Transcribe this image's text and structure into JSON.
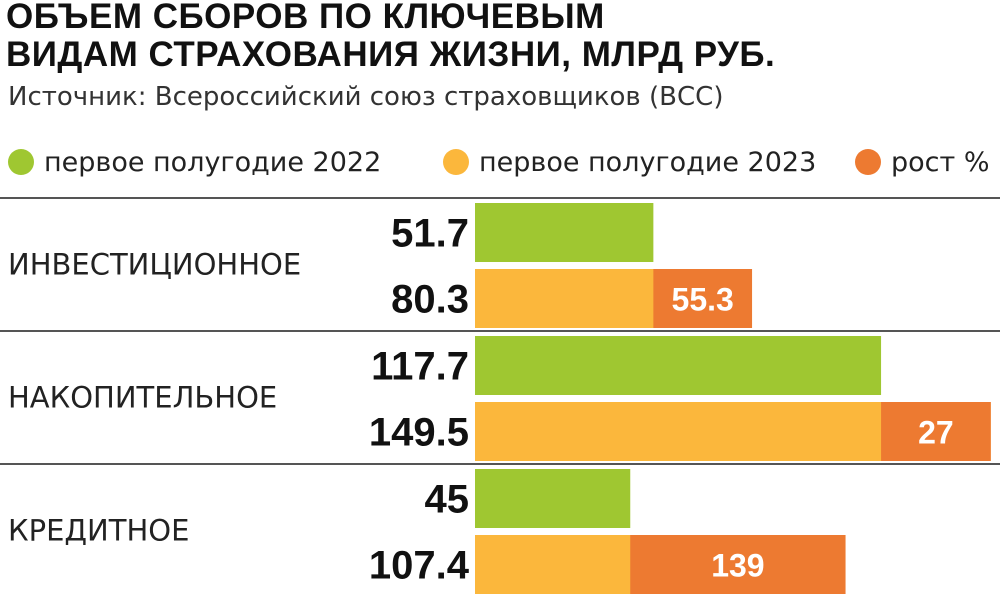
{
  "title_line1": "ОБЪЕМ СБОРОВ ПО КЛЮЧЕВЫМ",
  "title_line2": "ВИДАМ СТРАХОВАНИЯ ЖИЗНИ, МЛРД РУБ.",
  "source": "Источник: Всероссийский союз страховщиков (ВСС)",
  "legend": [
    {
      "label": "первое полугодие 2022",
      "color": "#9fc731"
    },
    {
      "label": "первое полугодие 2023",
      "color": "#fbb73c"
    },
    {
      "label": "рост %",
      "color": "#ed7a31"
    }
  ],
  "chart_data": {
    "type": "bar",
    "orientation": "horizontal",
    "categories": [
      "ИНВЕСТИЦИОННОЕ",
      "НАКОПИТЕЛЬНОЕ",
      "КРЕДИТНОЕ"
    ],
    "series": [
      {
        "name": "первое полугодие 2022",
        "values": [
          51.7,
          117.7,
          45
        ],
        "labels": [
          "51.7",
          "117.7",
          "45"
        ],
        "color": "#9fc731"
      },
      {
        "name": "первое полугодие 2023",
        "values": [
          80.3,
          149.5,
          107.4
        ],
        "labels": [
          "80.3",
          "149.5",
          "107.4"
        ],
        "color": "#fbb73c"
      }
    ],
    "growth": {
      "name": "рост %",
      "values": [
        55.3,
        27,
        139
      ],
      "labels": [
        "55.3",
        "27",
        "139"
      ],
      "color": "#ed7a31"
    },
    "legend_position": "top",
    "grid": false
  }
}
